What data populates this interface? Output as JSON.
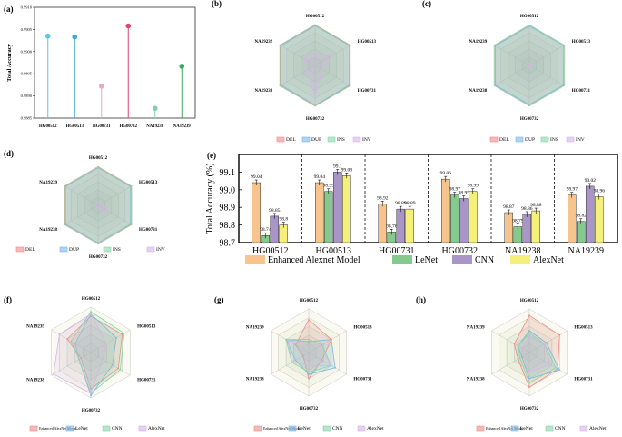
{
  "samples": [
    "HG00512",
    "HG00513",
    "HG00731",
    "HG00732",
    "NA19238",
    "NA19239"
  ],
  "classes": [
    "DEL",
    "DUP",
    "INS",
    "INV"
  ],
  "models": [
    "Enhanced AlexNet Model",
    "LeNet",
    "CNN",
    "AlexNet"
  ],
  "class_colors": [
    "#f08a8a",
    "#7fb5e6",
    "#86d6a8",
    "#d7b3e8"
  ],
  "model_colors": [
    "#f7c48e",
    "#86c98e",
    "#a995c8",
    "#f5f07a"
  ],
  "radar_model_colors": [
    "#f08a8a",
    "#7fb5e6",
    "#86d6a8",
    "#d7b3e8"
  ],
  "chart_data": [
    {
      "panel": "(a)",
      "type": "scatter",
      "title": "",
      "ylabel": "Total Accuracy",
      "ylim": [
        0.9885,
        0.991
      ],
      "yticks": [
        "0.9885",
        "0.9890",
        "0.9895",
        "0.9900",
        "0.9905",
        "0.9910"
      ],
      "categories": [
        "HG00512",
        "HG00513",
        "HG00731",
        "HG00732",
        "NA19238",
        "NA19239"
      ],
      "values": [
        0.99035,
        0.99033,
        0.98922,
        0.99058,
        0.98872,
        0.98967
      ],
      "colors": [
        "#5bc8e8",
        "#3aa8d8",
        "#f2a7c0",
        "#e04468",
        "#7ed0a8",
        "#3aa860"
      ]
    },
    {
      "panel": "(b)",
      "type": "radar",
      "axes": [
        "HG00512",
        "HG00513",
        "HG00731",
        "HG00732",
        "NA19238",
        "NA19239"
      ],
      "legend": [
        "DEL",
        "DUP",
        "INS",
        "INV"
      ],
      "series": [
        {
          "name": "DEL",
          "values": [
            0.99,
            0.99,
            0.99,
            0.99,
            0.99,
            0.99
          ]
        },
        {
          "name": "DUP",
          "values": [
            0.97,
            0.97,
            0.96,
            0.97,
            0.96,
            0.96
          ]
        },
        {
          "name": "INS",
          "values": [
            0.98,
            0.98,
            0.98,
            0.98,
            0.98,
            0.98
          ]
        },
        {
          "name": "INV",
          "values": [
            0.3,
            0.45,
            0.2,
            0.75,
            0.25,
            0.3
          ]
        }
      ]
    },
    {
      "panel": "(c)",
      "type": "radar",
      "axes": [
        "HG00512",
        "HG00513",
        "HG00731",
        "HG00732",
        "NA19238",
        "NA19239"
      ],
      "legend": [
        "DEL",
        "DUP",
        "INS",
        "INV"
      ],
      "series": [
        {
          "name": "DEL",
          "values": [
            0.98,
            0.98,
            0.98,
            0.98,
            0.98,
            0.98
          ]
        },
        {
          "name": "DUP",
          "values": [
            0.96,
            0.97,
            0.96,
            0.96,
            0.96,
            0.96
          ]
        },
        {
          "name": "INS",
          "values": [
            0.98,
            0.98,
            0.98,
            0.98,
            0.98,
            0.98
          ]
        },
        {
          "name": "INV",
          "values": [
            0.05,
            0.1,
            0.05,
            0.05,
            0.05,
            0.05
          ]
        }
      ]
    },
    {
      "panel": "(d)",
      "type": "radar",
      "axes": [
        "HG00512",
        "HG00513",
        "HG00731",
        "HG00732",
        "NA19238",
        "NA19239"
      ],
      "legend": [
        "DEL",
        "DUP",
        "INS",
        "INV"
      ],
      "series": [
        {
          "name": "DEL",
          "values": [
            0.98,
            0.98,
            0.98,
            0.98,
            0.98,
            0.98
          ]
        },
        {
          "name": "DUP",
          "values": [
            0.96,
            0.96,
            0.96,
            0.96,
            0.96,
            0.96
          ]
        },
        {
          "name": "INS",
          "values": [
            0.97,
            0.97,
            0.97,
            0.97,
            0.97,
            0.97
          ]
        },
        {
          "name": "INV",
          "values": [
            0.05,
            0.1,
            0.3,
            0.1,
            0.05,
            0.05
          ]
        }
      ]
    },
    {
      "panel": "(e)",
      "type": "bar",
      "ylabel": "Total Accuracy (%)",
      "ylim": [
        98.7,
        99.2
      ],
      "yticks": [
        "98.7",
        "98.8",
        "98.9",
        "99.0",
        "99.1"
      ],
      "categories": [
        "HG00512",
        "HG00513",
        "HG00731",
        "HG00732",
        "NA19238",
        "NA19239"
      ],
      "series": [
        {
          "name": "Enhanced Alexnet Model",
          "values": [
            99.04,
            99.04,
            98.92,
            99.06,
            98.87,
            98.97
          ]
        },
        {
          "name": "LeNet",
          "values": [
            98.74,
            98.99,
            98.76,
            98.97,
            98.79,
            98.82
          ]
        },
        {
          "name": "CNN",
          "values": [
            98.85,
            99.1,
            98.89,
            98.95,
            98.86,
            99.02
          ]
        },
        {
          "name": "AlexNet",
          "values": [
            98.8,
            99.08,
            98.89,
            98.99,
            98.88,
            98.96
          ]
        }
      ],
      "labels": [
        [
          "99.04",
          "98.74",
          "98.85",
          "98.8"
        ],
        [
          "99.04",
          "98.99",
          "99.1",
          "99.08"
        ],
        [
          "98.92",
          "98.76",
          "98.89",
          "98.89"
        ],
        [
          "99.06",
          "98.97",
          "98.95",
          "98.99"
        ],
        [
          "98.87",
          "98.79",
          "98.86",
          "98.88"
        ],
        [
          "98.97",
          "98.82",
          "99.02",
          "98.96"
        ]
      ],
      "legend": [
        "Enhanced Alexnet Model",
        "LeNet",
        "CNN",
        "AlexNet"
      ]
    },
    {
      "panel": "(f)",
      "type": "radar",
      "axes": [
        "HG00512",
        "HG00513",
        "HG00731",
        "HG00732",
        "NA19238",
        "NA19239"
      ],
      "legend": [
        "Enhanced AlexNet Model",
        "LeNet",
        "CNN",
        "AlexNet"
      ],
      "series": [
        {
          "name": "Enhanced AlexNet Model",
          "values": [
            0.8,
            0.8,
            0.7,
            0.8,
            0.25,
            0.6
          ]
        },
        {
          "name": "LeNet",
          "values": [
            0.85,
            0.65,
            0.55,
            0.95,
            0.3,
            0.4
          ]
        },
        {
          "name": "CNN",
          "values": [
            0.9,
            0.85,
            0.75,
            0.9,
            0.3,
            0.5
          ]
        },
        {
          "name": "AlexNet",
          "values": [
            0.85,
            0.4,
            0.3,
            0.9,
            0.95,
            0.8
          ]
        }
      ]
    },
    {
      "panel": "(g)",
      "type": "radar",
      "axes": [
        "HG00512",
        "HG00513",
        "HG00731",
        "HG00732",
        "NA19238",
        "NA19239"
      ],
      "legend": [
        "Enhanced AlexNet Model",
        "LeNet",
        "CNN",
        "AlexNet"
      ],
      "series": [
        {
          "name": "Enhanced AlexNet Model",
          "values": [
            0.75,
            0.6,
            0.35,
            0.6,
            0.15,
            0.35
          ]
        },
        {
          "name": "LeNet",
          "values": [
            0.25,
            0.6,
            0.7,
            0.5,
            0.35,
            0.6
          ]
        },
        {
          "name": "CNN",
          "values": [
            0.3,
            0.35,
            0.6,
            0.45,
            0.45,
            0.6
          ]
        },
        {
          "name": "AlexNet",
          "values": [
            0.2,
            0.3,
            0.6,
            0.3,
            0.45,
            0.55
          ]
        }
      ]
    },
    {
      "panel": "(h)",
      "type": "radar",
      "axes": [
        "HG00512",
        "HG00513",
        "HG00731",
        "HG00732",
        "NA19238",
        "NA19239"
      ],
      "legend": [
        "Enhanced AlexNet Model",
        "LeNet",
        "CNN",
        "AlexNet"
      ],
      "series": [
        {
          "name": "Enhanced AlexNet Model",
          "values": [
            0.85,
            0.8,
            0.75,
            0.8,
            0.3,
            0.4
          ]
        },
        {
          "name": "LeNet",
          "values": [
            0.5,
            0.45,
            0.8,
            0.6,
            0.2,
            0.3
          ]
        },
        {
          "name": "CNN",
          "values": [
            0.45,
            0.4,
            0.7,
            0.7,
            0.25,
            0.3
          ]
        },
        {
          "name": "AlexNet",
          "values": [
            0.35,
            0.4,
            0.55,
            0.45,
            0.15,
            0.2
          ]
        }
      ]
    }
  ]
}
